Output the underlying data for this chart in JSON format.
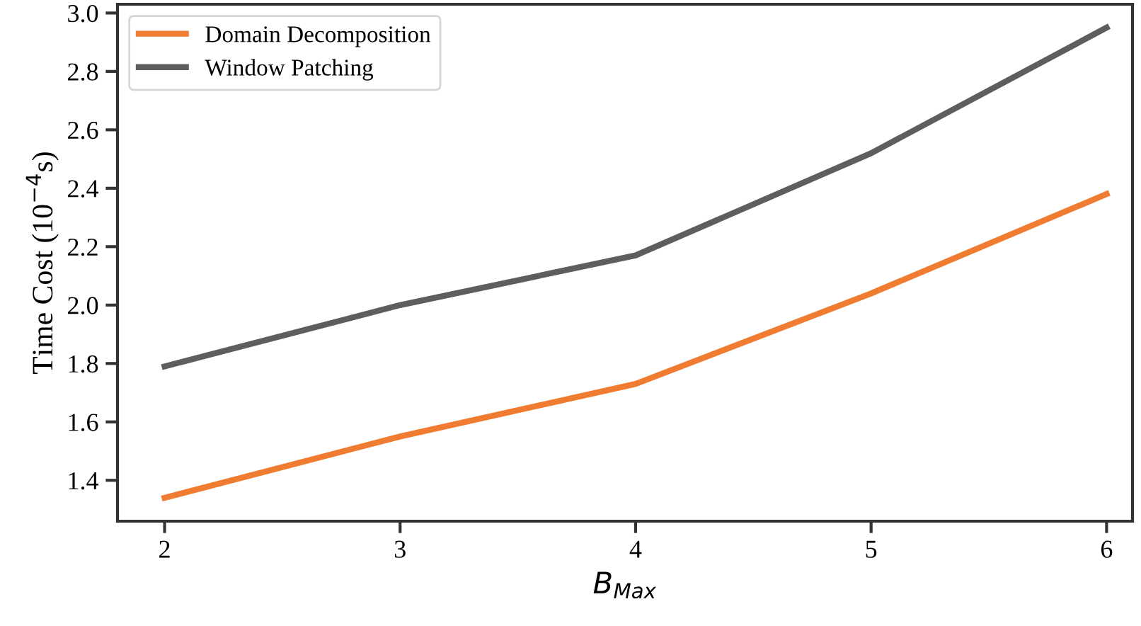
{
  "chart_data": {
    "type": "line",
    "xlabel": "B$_{Max}$",
    "ylabel": "Time Cost (10$^{−4}$s)",
    "x": [
      2,
      3,
      4,
      5,
      6
    ],
    "series": [
      {
        "name": "Domain Decomposition",
        "color": "#f07c32",
        "values": [
          1.34,
          1.55,
          1.73,
          2.04,
          2.38
        ]
      },
      {
        "name": "Window Patching",
        "color": "#5e5e5e",
        "values": [
          1.79,
          2.0,
          2.17,
          2.52,
          2.95
        ]
      }
    ],
    "xlim": [
      1.8,
      6.11
    ],
    "xticks": [
      2,
      3,
      4,
      5,
      6
    ],
    "ylim": [
      1.26,
      3.03
    ],
    "yticks": [
      1.4,
      1.6,
      1.8,
      {
        "value": 2,
        "label": "2.0"
      },
      2.2,
      2.4,
      2.6,
      2.8,
      {
        "value": 3,
        "label": "3.0"
      }
    ],
    "grid": false,
    "legend": "top left",
    "marker": "none",
    "line_style": "solid"
  }
}
